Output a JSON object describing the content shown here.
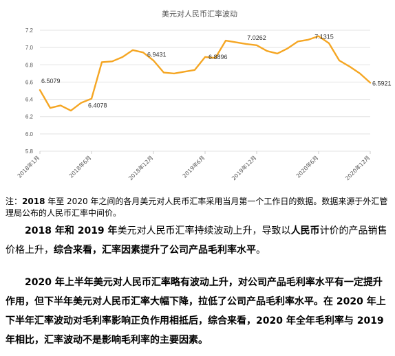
{
  "chart_data": {
    "type": "line",
    "title": "美元对人民币汇率波动",
    "ylim": [
      5.8,
      7.2
    ],
    "yticks": [
      "7.2",
      "7.0",
      "6.8",
      "6.6",
      "6.4",
      "6.2",
      "6.0",
      "5.8"
    ],
    "xtick_labels": [
      "2018年1月",
      "2018年6月",
      "2018年12月",
      "2019年6月",
      "2019年12月",
      "2020年6月",
      "2020年12月"
    ],
    "grid": true,
    "line_color": "#f5a623",
    "series": [
      {
        "values": [
          6.5079,
          6.3,
          6.33,
          6.27,
          6.36,
          6.4078,
          6.83,
          6.84,
          6.89,
          6.97,
          6.9431,
          6.85,
          6.71,
          6.7,
          6.72,
          6.74,
          6.8896,
          6.88,
          7.08,
          7.06,
          7.04,
          7.0262,
          6.96,
          6.93,
          6.99,
          7.07,
          7.09,
          7.1315,
          7.05,
          6.85,
          6.78,
          6.7,
          6.5921
        ]
      }
    ],
    "annotations": [
      {
        "index": 0,
        "text": "6.5079"
      },
      {
        "index": 5,
        "text": "6.4078"
      },
      {
        "index": 10,
        "text": "6.9431"
      },
      {
        "index": 16,
        "text": "6.8896"
      },
      {
        "index": 21,
        "text": "7.0262"
      },
      {
        "index": 27,
        "text": "7.1315"
      },
      {
        "index": 32,
        "text": "6.5921"
      }
    ]
  },
  "note": {
    "prefix": "注：",
    "y1": "2018",
    "mid": " 年至 2020 年之间的各月美元对人民币汇率采用当月第一个工作日的数据。数据来源于外汇管理局公布的人民币汇率中间价。"
  },
  "para1": {
    "y1": "2018 年和 2019 年",
    "t1": "美元对人民币汇率持续波动上升，导致以",
    "rmb": "人民币",
    "t2": "计价的产品销售价格上升，",
    "conclusion": "综合来看，汇率因素提升了公司产品毛利率水平",
    "end": "。"
  },
  "para2": {
    "text": "2020 年上半年美元对人民币汇率略有波动上升，对公司产品毛利率水平有一定提升作用，但下半年美元对人民币汇率大幅下降，拉低了公司产品毛利率水平。在 2020 年上下半年汇率波动对毛利率影响正负作用相抵后，综合来看，2020 年全年毛利率与 2019 年相比，汇率波动不是影响毛利率的主要因素。"
  }
}
